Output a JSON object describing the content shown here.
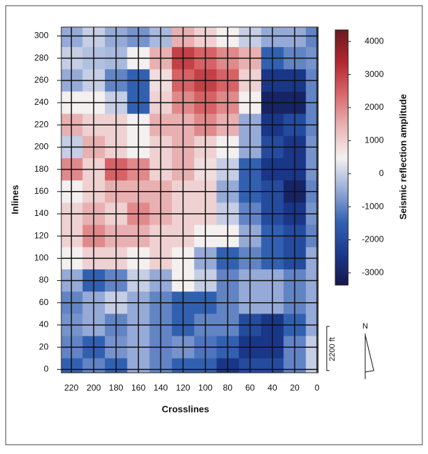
{
  "chart_data": {
    "type": "heatmap",
    "x_label": "Crosslines",
    "y_label": "Inlines",
    "colorbar_label": "Seismic reflection amplitude",
    "scale_label": "2200 ft",
    "north_label": "N",
    "x": [
      220,
      200,
      180,
      160,
      140,
      120,
      100,
      80,
      60,
      40,
      20,
      0
    ],
    "y": [
      300,
      280,
      260,
      240,
      220,
      200,
      180,
      160,
      140,
      120,
      100,
      80,
      60,
      40,
      20,
      0
    ],
    "z": [
      [
        -500,
        0,
        -500,
        -800,
        -300,
        1500,
        1000,
        500,
        0,
        -500,
        -500,
        -1000
      ],
      [
        0,
        -200,
        -300,
        500,
        1500,
        3000,
        2500,
        2000,
        1500,
        -1500,
        -1000,
        -800
      ],
      [
        -500,
        0,
        -1000,
        -1500,
        800,
        2500,
        3000,
        2500,
        1000,
        -2500,
        -2500,
        -1000
      ],
      [
        500,
        500,
        0,
        -1500,
        1000,
        2000,
        2500,
        2000,
        500,
        -3000,
        -3000,
        -1000
      ],
      [
        1500,
        1000,
        1000,
        500,
        1500,
        1500,
        2000,
        1500,
        -500,
        -2500,
        -2000,
        -1000
      ],
      [
        0,
        1500,
        1000,
        500,
        1000,
        1500,
        1000,
        500,
        -500,
        -2000,
        -2500,
        -800
      ],
      [
        2000,
        1000,
        2500,
        2000,
        1000,
        1500,
        800,
        0,
        -1500,
        -2500,
        -2500,
        -800
      ],
      [
        500,
        1000,
        1500,
        1500,
        1500,
        1000,
        1000,
        -500,
        -1500,
        -2000,
        -3000,
        -1000
      ],
      [
        1000,
        1500,
        1000,
        2000,
        1500,
        1000,
        1000,
        0,
        -1000,
        -2000,
        -2500,
        -800
      ],
      [
        1000,
        2000,
        1500,
        1500,
        1000,
        1000,
        500,
        500,
        -500,
        -1500,
        -2000,
        -1000
      ],
      [
        500,
        1000,
        1000,
        500,
        1000,
        500,
        -500,
        -1500,
        -1000,
        -1500,
        -2000,
        -500
      ],
      [
        -500,
        -1500,
        -1000,
        0,
        -500,
        500,
        0,
        -1000,
        -500,
        -500,
        -1000,
        -500
      ],
      [
        -1000,
        -500,
        0,
        -500,
        -1000,
        -1500,
        -1500,
        -1000,
        -500,
        -500,
        -1000,
        -500
      ],
      [
        -800,
        -500,
        -1000,
        -500,
        -1000,
        -1500,
        -1000,
        -1000,
        -2000,
        -2500,
        -1500,
        -500
      ],
      [
        -1000,
        -1500,
        -800,
        -500,
        -1000,
        -800,
        -1200,
        -1500,
        -2500,
        -2500,
        -1000,
        0
      ],
      [
        -1500,
        -1000,
        -1500,
        -500,
        -1000,
        -1500,
        -1500,
        -2500,
        -2000,
        -2000,
        -1000,
        0
      ]
    ],
    "xlim": [
      229,
      -1
    ],
    "xticks": [
      220,
      200,
      180,
      160,
      140,
      120,
      100,
      80,
      60,
      40,
      20,
      0
    ],
    "ylim": [
      -3,
      308
    ],
    "yticks": [
      0,
      20,
      40,
      60,
      80,
      100,
      120,
      140,
      160,
      180,
      200,
      220,
      240,
      260,
      280,
      300
    ],
    "zlim": [
      -3370,
      4350
    ],
    "zticks": [
      -3000,
      -2000,
      -1000,
      0,
      1000,
      2000,
      3000,
      4000
    ],
    "colors": [
      "#15164a",
      "#1b3a8e",
      "#3462b3",
      "#98acd8",
      "#f4f1f1",
      "#eab4b4",
      "#d9676b",
      "#b3272f",
      "#6a1b20"
    ],
    "grid": true
  }
}
